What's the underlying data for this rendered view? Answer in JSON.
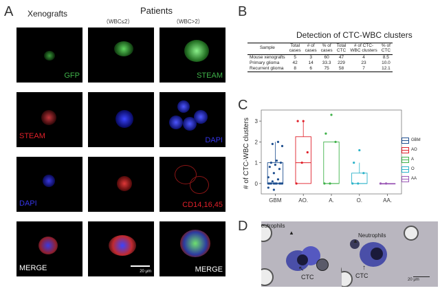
{
  "panels": {
    "A": "A",
    "B": "B",
    "C": "C",
    "D": "D"
  },
  "panelA": {
    "col_xenografts": "Xenografts",
    "col_patients": "Patients",
    "sub_wbc_low": "（WBC≤2）",
    "sub_wbc_high": "（WBC>2）",
    "labels": {
      "r1c1": "GFP",
      "r1c3": "STEAM",
      "r2c1": "STEAM",
      "r2c3": "DAPI",
      "r3c1": "DAPI",
      "r3c3": "CD14,16,45",
      "r4c1": "MERGE",
      "r4c3": "MERGE"
    },
    "scale": "20 μm",
    "colors": {
      "green": "#3fb24a",
      "red": "#e0202a",
      "blue": "#3535e8",
      "white": "#ffffff"
    }
  },
  "panelB": {
    "title": "Detection of CTC-WBC clusters",
    "headers": [
      "Sample",
      "Total\ncases",
      "# of\ncases",
      "% of\ncases",
      "Total\nCTC",
      "# of CTC-\nWBC clusters",
      "% of\nCTC"
    ],
    "rows": [
      [
        "Mouse xenografts",
        "5",
        "3",
        "60",
        "47",
        "4",
        "8.5"
      ],
      [
        "Primary glioma",
        "42",
        "14",
        "33.3",
        "229",
        "23",
        "10.0"
      ],
      [
        "Recurrent glioma",
        "8",
        "6",
        "75",
        "58",
        "7",
        "12.1"
      ]
    ]
  },
  "chart_data": {
    "type": "box",
    "ylabel": "# of CTC-WBC clusters",
    "xlabel": "",
    "ylim": [
      -0.5,
      3.4
    ],
    "yticks": [
      0,
      1,
      2,
      3
    ],
    "categories": [
      "GBM",
      "AO.",
      "A.",
      "O.",
      "AA."
    ],
    "series": [
      {
        "name": "GBM",
        "color": "#1f4f8f",
        "q1": 0,
        "median": 0,
        "q3": 1,
        "min": 0,
        "max": 2,
        "points": [
          0,
          0,
          0,
          0,
          0,
          0,
          0,
          0,
          0,
          0.1,
          0.2,
          0.3,
          0.5,
          0.7,
          0.8,
          0.9,
          1,
          1,
          1.1,
          1.8,
          1.9,
          2,
          -0.2,
          -0.3
        ]
      },
      {
        "name": "AO",
        "color": "#e0202a",
        "q1": 0,
        "median": 1,
        "q3": 2.25,
        "min": 0,
        "max": 3,
        "points": [
          0,
          1,
          1.5,
          3,
          3
        ]
      },
      {
        "name": "A",
        "color": "#3fb24a",
        "q1": 0,
        "median": 0,
        "q3": 2,
        "min": 0,
        "max": 2,
        "points": [
          0,
          0,
          2,
          2.4,
          3.3
        ]
      },
      {
        "name": "O",
        "color": "#2cb3c9",
        "q1": 0,
        "median": 0,
        "q3": 0.5,
        "min": 0,
        "max": 1,
        "points": [
          0,
          0,
          0.5,
          1,
          1.6
        ]
      },
      {
        "name": "AA",
        "color": "#9b59b6",
        "q1": 0,
        "median": 0,
        "q3": 0,
        "min": 0,
        "max": 0,
        "points": [
          0,
          0
        ]
      }
    ],
    "legend_position": "right",
    "grid": false
  },
  "panelD": {
    "neutrophils": "Neutrophils",
    "ctc": "CTC",
    "scale": "20 μm"
  }
}
